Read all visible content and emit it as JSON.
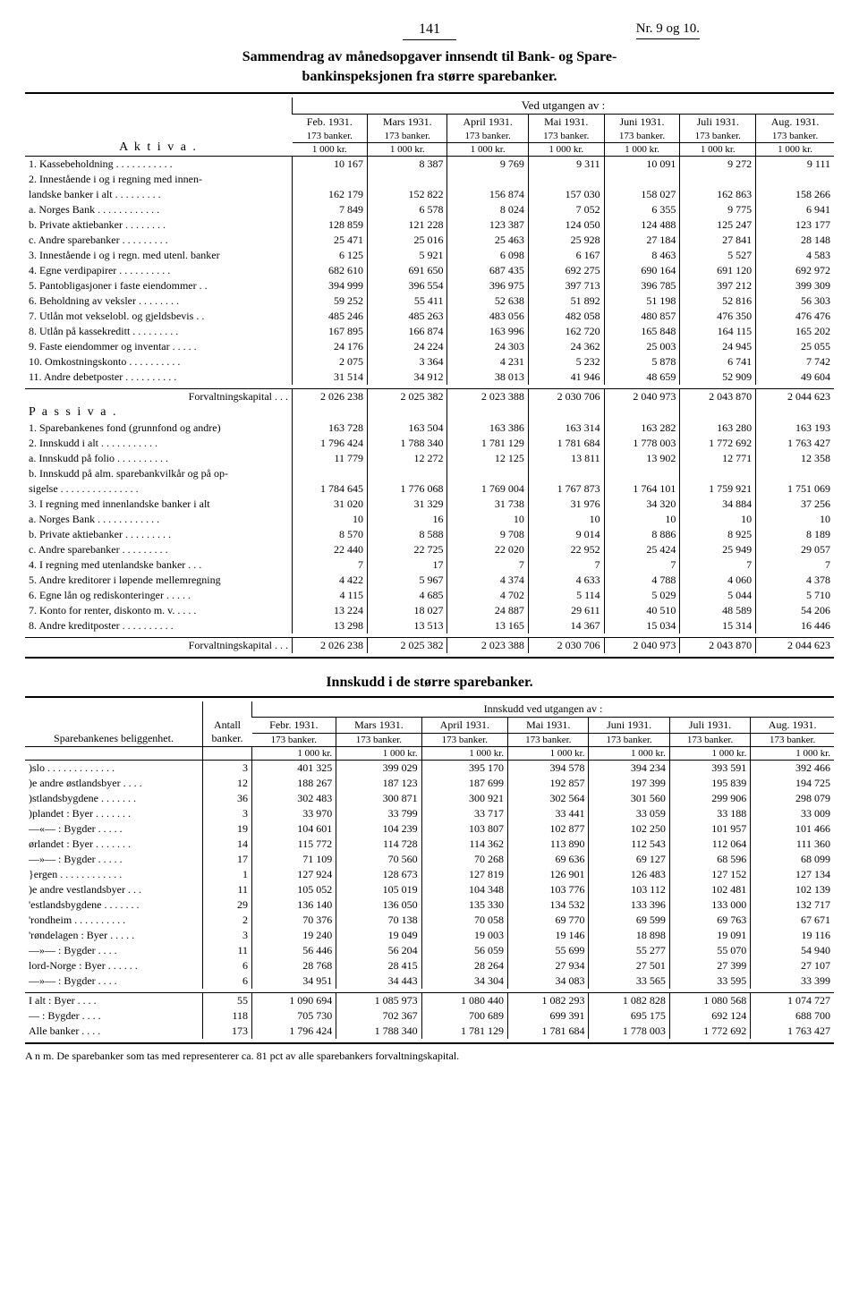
{
  "page_number": "141",
  "issue": "Nr. 9 og 10.",
  "title_line1": "Sammendrag av månedsopgaver innsendt til Bank- og Spare-",
  "title_line2": "bankinspeksjonen fra større sparebanker.",
  "ved_utgangen": "Ved utgangen av :",
  "months": [
    "Feb. 1931.",
    "Mars 1931.",
    "April 1931.",
    "Mai 1931.",
    "Juni 1931.",
    "Juli 1931.",
    "Aug. 1931."
  ],
  "banker_line": "173 banker.",
  "unit_line": "1 000 kr.",
  "aktiva_label": "A k t i v a .",
  "passiva_label": "P a s s i v a .",
  "forvalt_label": "Forvaltningskapital .  .  .",
  "aktiva_rows": [
    {
      "label": "1. Kassebeholdning . . . . . . . . . . .",
      "v": [
        "10 167",
        "8 387",
        "9 769",
        "9 311",
        "10 091",
        "9 272",
        "9 111"
      ]
    },
    {
      "label": "2. Innestående i og i regning med innen-",
      "v": [
        "",
        "",
        "",
        "",
        "",
        "",
        ""
      ]
    },
    {
      "label": "landske banker i alt . . . . . . . . .",
      "indent": 1,
      "v": [
        "162 179",
        "152 822",
        "156 874",
        "157 030",
        "158 027",
        "162 863",
        "158 266"
      ]
    },
    {
      "label": "a. Norges Bank . . . . . . . . . . . .",
      "indent": 1,
      "v": [
        "7 849",
        "6 578",
        "8 024",
        "7 052",
        "6 355",
        "9 775",
        "6 941"
      ]
    },
    {
      "label": "b. Private aktiebanker  . . . . . . . .",
      "indent": 1,
      "v": [
        "128 859",
        "121 228",
        "123 387",
        "124 050",
        "124 488",
        "125 247",
        "123 177"
      ]
    },
    {
      "label": "c. Andre sparebanker . . . . . . . . .",
      "indent": 1,
      "v": [
        "25 471",
        "25 016",
        "25 463",
        "25 928",
        "27 184",
        "27 841",
        "28 148"
      ]
    },
    {
      "label": "3. Innestående i og i regn. med utenl. banker",
      "v": [
        "6 125",
        "5 921",
        "6 098",
        "6 167",
        "8 463",
        "5 527",
        "4 583"
      ]
    },
    {
      "label": "4. Egne verdipapirer . . . . . . . . . .",
      "v": [
        "682 610",
        "691 650",
        "687 435",
        "692 275",
        "690 164",
        "691 120",
        "692 972"
      ]
    },
    {
      "label": "5. Pantobligasjoner i faste eiendommer  . .",
      "v": [
        "394 999",
        "396 554",
        "396 975",
        "397 713",
        "396 785",
        "397 212",
        "399 309"
      ]
    },
    {
      "label": "6. Beholdning av veksler . . . . . . . .",
      "v": [
        "59 252",
        "55 411",
        "52 638",
        "51 892",
        "51 198",
        "52 816",
        "56 303"
      ]
    },
    {
      "label": "7. Utlån mot vekselobl. og gjeldsbevis . .",
      "v": [
        "485 246",
        "485 263",
        "483 056",
        "482 058",
        "480 857",
        "476 350",
        "476 476"
      ]
    },
    {
      "label": "8. Utlån på kassekreditt . . . . . . . . .",
      "v": [
        "167 895",
        "166 874",
        "163 996",
        "162 720",
        "165 848",
        "164 115",
        "165 202"
      ]
    },
    {
      "label": "9. Faste eiendommer og inventar . . . . .",
      "v": [
        "24 176",
        "24 224",
        "24 303",
        "24 362",
        "25 003",
        "24 945",
        "25 055"
      ]
    },
    {
      "label": "10. Omkostningskonto  . . . . . . . . . .",
      "v": [
        "2 075",
        "3 364",
        "4 231",
        "5 232",
        "5 878",
        "6 741",
        "7 742"
      ]
    },
    {
      "label": "11. Andre debetposter . . . . . . . . . .",
      "v": [
        "31 514",
        "34 912",
        "38 013",
        "41 946",
        "48 659",
        "52 909",
        "49 604"
      ]
    }
  ],
  "aktiva_total": [
    "2 026 238",
    "2 025 382",
    "2 023 388",
    "2 030 706",
    "2 040 973",
    "2 043 870",
    "2 044 623"
  ],
  "passiva_rows": [
    {
      "label": "1. Sparebankenes fond (grunnfond og andre)",
      "v": [
        "163 728",
        "163 504",
        "163 386",
        "163 314",
        "163 282",
        "163 280",
        "163 193"
      ]
    },
    {
      "label": "2. Innskudd i alt  . . . . . . . . . . .",
      "v": [
        "1 796 424",
        "1 788 340",
        "1 781 129",
        "1 781 684",
        "1 778 003",
        "1 772 692",
        "1 763 427"
      ]
    },
    {
      "label": "a. Innskudd på folio . . . . . . . . . .",
      "indent": 1,
      "v": [
        "11 779",
        "12 272",
        "12 125",
        "13 811",
        "13 902",
        "12 771",
        "12 358"
      ]
    },
    {
      "label": "b. Innskudd på alm. sparebankvilkår og på op-",
      "indent": 1,
      "v": [
        "",
        "",
        "",
        "",
        "",
        "",
        ""
      ]
    },
    {
      "label": "sigelse . . . . . . . . . . . . . . .",
      "indent": 2,
      "v": [
        "1 784 645",
        "1 776 068",
        "1 769 004",
        "1 767 873",
        "1 764 101",
        "1 759 921",
        "1 751 069"
      ]
    },
    {
      "label": "3. I regning med innenlandske banker i alt",
      "v": [
        "31 020",
        "31 329",
        "31 738",
        "31 976",
        "34 320",
        "34 884",
        "37 256"
      ]
    },
    {
      "label": "a. Norges Bank . . . . . . . . . . . .",
      "indent": 1,
      "v": [
        "10",
        "16",
        "10",
        "10",
        "10",
        "10",
        "10"
      ]
    },
    {
      "label": "b. Private aktiebanker . . . . . . . . .",
      "indent": 1,
      "v": [
        "8 570",
        "8 588",
        "9 708",
        "9 014",
        "8 886",
        "8 925",
        "8 189"
      ]
    },
    {
      "label": "c. Andre sparebanker . . . . . . . . .",
      "indent": 1,
      "v": [
        "22 440",
        "22 725",
        "22 020",
        "22 952",
        "25 424",
        "25 949",
        "29 057"
      ]
    },
    {
      "label": "4. I regning med utenlandske banker  . . .",
      "v": [
        "7",
        "17",
        "7",
        "7",
        "7",
        "7",
        "7"
      ]
    },
    {
      "label": "5. Andre kreditorer i løpende mellemregning",
      "v": [
        "4 422",
        "5 967",
        "4 374",
        "4 633",
        "4 788",
        "4 060",
        "4 378"
      ]
    },
    {
      "label": "6. Egne lån og rediskonteringer . . . . .",
      "v": [
        "4 115",
        "4 685",
        "4 702",
        "5 114",
        "5 029",
        "5 044",
        "5 710"
      ]
    },
    {
      "label": "7. Konto for renter, diskonto m. v. . . . .",
      "v": [
        "13 224",
        "18 027",
        "24 887",
        "29 611",
        "40 510",
        "48 589",
        "54 206"
      ]
    },
    {
      "label": "8. Andre kreditposter . . . . . . . . . .",
      "v": [
        "13 298",
        "13 513",
        "13 165",
        "14 367",
        "15 034",
        "15 314",
        "16 446"
      ]
    }
  ],
  "passiva_total": [
    "2 026 238",
    "2 025 382",
    "2 023 388",
    "2 030 706",
    "2 040 973",
    "2 043 870",
    "2 044 623"
  ],
  "title2": "Innskudd i de større sparebanker.",
  "lower_left_header": "Sparebankenes beliggenhet.",
  "antall_header": "Antall banker.",
  "innskudd_header": "Innskudd ved utgangen av :",
  "lower_months": [
    "Febr. 1931.",
    "Mars 1931.",
    "April 1931.",
    "Mai 1931.",
    "Juni 1931.",
    "Juli 1931.",
    "Aug. 1931."
  ],
  "lower_173": "173 banker.",
  "lower_unit": "1 000 kr.",
  "lower_rows": [
    {
      "label": ")slo . . . . . . . . . . . . .",
      "n": "3",
      "v": [
        "401 325",
        "399 029",
        "395 170",
        "394 578",
        "394 234",
        "393 591",
        "392 466"
      ]
    },
    {
      "label": ")e andre østlandsbyer  . . . .",
      "n": "12",
      "v": [
        "188 267",
        "187 123",
        "187 699",
        "192 857",
        "197 399",
        "195 839",
        "194 725"
      ]
    },
    {
      "label": ")stlandsbygdene . . . . . . .",
      "n": "36",
      "v": [
        "302 483",
        "300 871",
        "300 921",
        "302 564",
        "301 560",
        "299 906",
        "298 079"
      ]
    },
    {
      "label": ")plandet :  Byer . . . . . . .",
      "n": "3",
      "v": [
        "33 970",
        "33 799",
        "33 717",
        "33 441",
        "33 059",
        "33 188",
        "33 009"
      ]
    },
    {
      "label": "—«—  :  Bygder . . . . .",
      "n": "19",
      "v": [
        "104 601",
        "104 239",
        "103 807",
        "102 877",
        "102 250",
        "101 957",
        "101 466"
      ]
    },
    {
      "label": "ørlandet :  Byer . . . . . . .",
      "n": "14",
      "v": [
        "115 772",
        "114 728",
        "114 362",
        "113 890",
        "112 543",
        "112 064",
        "111 360"
      ]
    },
    {
      "label": "—»—  :  Bygder . . . . .",
      "n": "17",
      "v": [
        "71 109",
        "70 560",
        "70 268",
        "69 636",
        "69 127",
        "68 596",
        "68 099"
      ]
    },
    {
      "label": "}ergen . . . . . . . . . . . .",
      "n": "1",
      "v": [
        "127 924",
        "128 673",
        "127 819",
        "126 901",
        "126 483",
        "127 152",
        "127 134"
      ]
    },
    {
      "label": ")e andre vestlandsbyer  . . .",
      "n": "11",
      "v": [
        "105 052",
        "105 019",
        "104 348",
        "103 776",
        "103 112",
        "102 481",
        "102 139"
      ]
    },
    {
      "label": "'estlandsbygdene . . . . . . .",
      "n": "29",
      "v": [
        "136 140",
        "136 050",
        "135 330",
        "134 532",
        "133 396",
        "133 000",
        "132 717"
      ]
    },
    {
      "label": "'rondheim . . . . . . . . . .",
      "n": "2",
      "v": [
        "70 376",
        "70 138",
        "70 058",
        "69 770",
        "69 599",
        "69 763",
        "67 671"
      ]
    },
    {
      "label": "'røndelagen :  Byer . . . . .",
      "n": "3",
      "v": [
        "19 240",
        "19 049",
        "19 003",
        "19 146",
        "18 898",
        "19 091",
        "19 116"
      ]
    },
    {
      "label": "—»—     :  Bygder . . . .",
      "n": "11",
      "v": [
        "56 446",
        "56 204",
        "56 059",
        "55 699",
        "55 277",
        "55 070",
        "54 940"
      ]
    },
    {
      "label": "lord-Norge :  Byer . . . . . .",
      "n": "6",
      "v": [
        "28 768",
        "28 415",
        "28 264",
        "27 934",
        "27 501",
        "27 399",
        "27 107"
      ]
    },
    {
      "label": "—»—   :  Bygder . . . .",
      "n": "6",
      "v": [
        "34 951",
        "34 443",
        "34 304",
        "34 083",
        "33 565",
        "33 595",
        "33 399"
      ]
    }
  ],
  "lower_totals": [
    {
      "label": "I alt :  Byer   . . . .",
      "n": "55",
      "v": [
        "1 090 694",
        "1 085 973",
        "1 080 440",
        "1 082 293",
        "1 082 828",
        "1 080 568",
        "1 074 727"
      ]
    },
    {
      "label": "— :  Bygder  . . . .",
      "n": "118",
      "v": [
        "705 730",
        "702 367",
        "700 689",
        "699 391",
        "695 175",
        "692 124",
        "688 700"
      ]
    },
    {
      "label": "Alle banker  . . . .",
      "n": "173",
      "v": [
        "1 796 424",
        "1 788 340",
        "1 781 129",
        "1 781 684",
        "1 778 003",
        "1 772 692",
        "1 763 427"
      ]
    }
  ],
  "footnote": "A n m.  De sparebanker som tas med representerer ca. 81 pct av alle sparebankers forvaltningskapital."
}
